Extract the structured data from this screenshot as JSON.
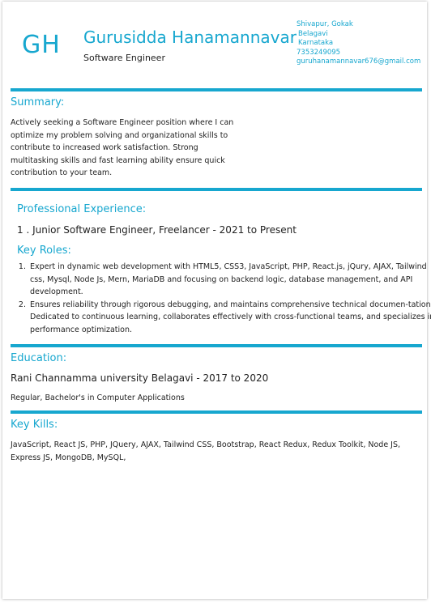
{
  "header": {
    "initials": "GH",
    "name": "Gurusidda Hanamannavar",
    "role": "Software Engineer",
    "contact": {
      "address_line1": "Shivapur, Gokak",
      "address_line2": "Belagavi",
      "address_line3": "Karnataka",
      "phone": "7353249095",
      "email": "guruhanamannavar676@gmail.com"
    }
  },
  "summary": {
    "title": "Summary:",
    "lines": [
      "Actively seeking a Software Engineer position where I can",
      "optimize my problem solving and organizational skills to",
      "contribute to increased work satisfaction. Strong",
      "multitasking skills and fast learning ability ensure quick",
      "contribution to your team."
    ]
  },
  "experience": {
    "title": "Professional Experience:",
    "job_title": "1 . Junior Software Engineer, Freelancer - 2021 to Present",
    "key_roles_title": "Key Roles:",
    "roles": [
      "Expert in dynamic web development with HTML5, CSS3, JavaScript, PHP, React.js, jQury, AJAX, Tailwind css, Mysql, Node Js, Mern, MariaDB and focusing on backend logic, database management, and API development.",
      "Ensures reliability through rigorous debugging, and maintains comprehensive technical documen-tation. Dedicated to continuous learning, collaborates effectively with cross-functional teams, and specializes in performance optimization."
    ]
  },
  "education": {
    "title": "Education:",
    "institution": "Rani Channamma university Belagavi - 2017 to 2020",
    "degree": "Regular, Bachelor's in Computer Applications"
  },
  "skills": {
    "title": "Key Kills:",
    "lines": [
      "JavaScript, React JS, PHP, JQuery, AJAX, Tailwind CSS, Bootstrap, React Redux, Redux Toolkit, Node JS,",
      "Express JS, MongoDB, MySQL,"
    ]
  },
  "colors": {
    "accent": "#17a7cf",
    "text": "#222222"
  }
}
